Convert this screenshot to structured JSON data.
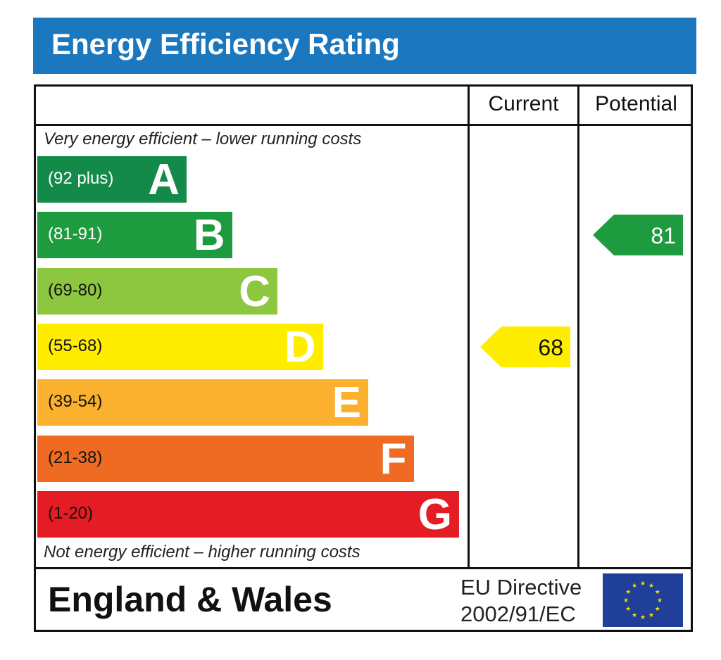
{
  "title": "Energy Efficiency Rating",
  "columns": {
    "current": "Current",
    "potential": "Potential"
  },
  "notes": {
    "top": "Very energy efficient – lower running costs",
    "bottom": "Not energy efficient – higher running costs"
  },
  "footer": {
    "region": "England & Wales",
    "directive_line1": "EU Directive",
    "directive_line2": "2002/91/EC"
  },
  "chart_data": {
    "type": "bar",
    "categories": [
      "A",
      "B",
      "C",
      "D",
      "E",
      "F",
      "G"
    ],
    "ranges": [
      "(92 plus)",
      "(81-91)",
      "(69-80)",
      "(55-68)",
      "(39-54)",
      "(21-38)",
      "(1-20)"
    ],
    "band_colors": [
      "#138a4a",
      "#1e9b3e",
      "#8dc63f",
      "#ffed00",
      "#fbb12d",
      "#ef6b23",
      "#e31d23"
    ],
    "letter_colors": [
      "#ffffff",
      "#ffffff",
      "#ffffff",
      "#ffffff",
      "#ffffff",
      "#ffffff",
      "#ffffff"
    ],
    "range_colors": [
      "#ffffff",
      "#ffffff",
      "#111111",
      "#111111",
      "#111111",
      "#111111",
      "#111111"
    ],
    "current": {
      "value": 68,
      "band": "D",
      "color": "#ffed00",
      "text_color": "#111111"
    },
    "potential": {
      "value": 81,
      "band": "B",
      "color": "#1e9b3e",
      "text_color": "#ffffff"
    }
  }
}
